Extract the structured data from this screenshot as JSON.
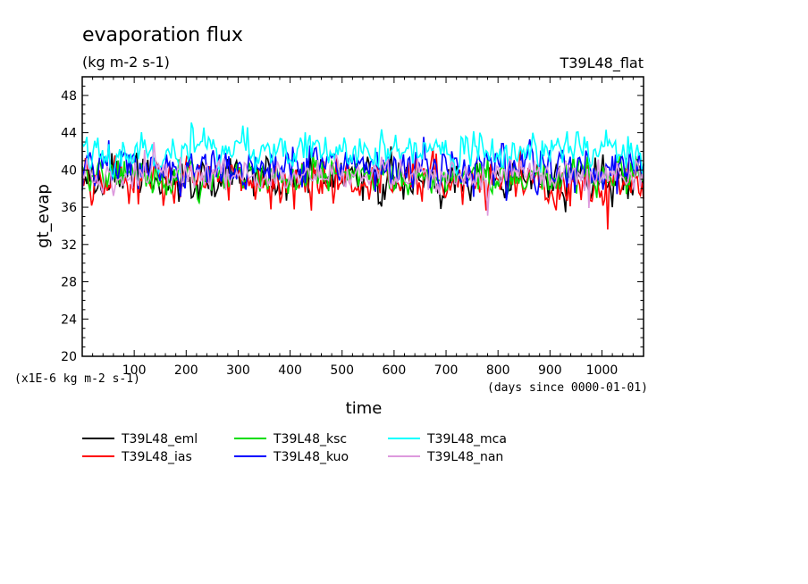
{
  "chart_data": {
    "type": "line",
    "title": "evaporation flux",
    "unit_label": "(kg m-2 s-1)",
    "run_label": "T39L48_flat",
    "ylabel": "gt_evap",
    "xlabel": "time",
    "y_scale_note": "(x1E-6 kg m-2 s-1)",
    "x_units_note": "(days since 0000-01-01)",
    "ylim": [
      20,
      50
    ],
    "xlim": [
      0,
      1080
    ],
    "y_ticks": [
      20,
      24,
      28,
      32,
      36,
      40,
      44,
      48
    ],
    "x_ticks": [
      100,
      200,
      300,
      400,
      500,
      600,
      700,
      800,
      900,
      1000
    ],
    "grid": false,
    "legend_position": "bottom",
    "series": [
      {
        "name": "T39L48_eml",
        "color": "#000000",
        "mean": 39.2,
        "amp": 2.0,
        "seed": 11
      },
      {
        "name": "T39L48_ias",
        "color": "#ff0000",
        "mean": 38.6,
        "amp": 2.2,
        "seed": 23
      },
      {
        "name": "T39L48_ksc",
        "color": "#00dd00",
        "mean": 39.4,
        "amp": 1.8,
        "seed": 37
      },
      {
        "name": "T39L48_kuo",
        "color": "#0000ff",
        "mean": 40.4,
        "amp": 2.0,
        "seed": 41
      },
      {
        "name": "T39L48_mca",
        "color": "#00ffff",
        "mean": 42.0,
        "amp": 1.9,
        "seed": 53
      },
      {
        "name": "T39L48_nan",
        "color": "#dd99dd",
        "mean": 39.4,
        "amp": 1.7,
        "seed": 67
      }
    ]
  }
}
